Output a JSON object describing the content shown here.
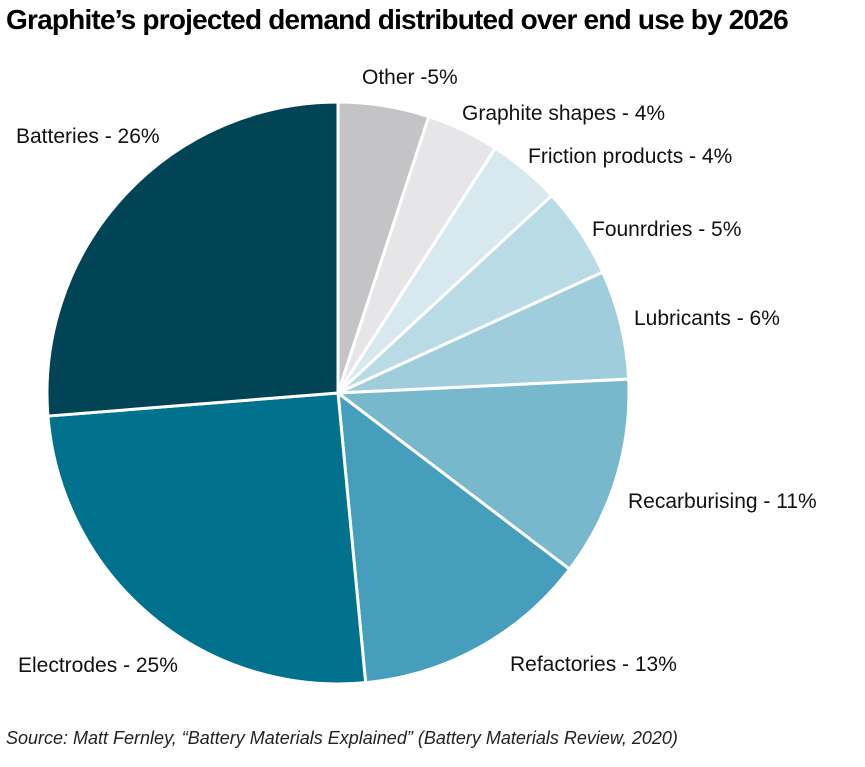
{
  "chart_data": {
    "type": "pie",
    "title": "Graphite’s projected demand distributed over end use by 2026",
    "slices": [
      {
        "label": "Other -5%",
        "value": 5,
        "color": "#c4c3c5"
      },
      {
        "label": "Graphite shapes - 4%",
        "value": 4,
        "color": "#e6e5e7"
      },
      {
        "label": "Friction products - 4%",
        "value": 4,
        "color": "#d7e9ef"
      },
      {
        "label": "Founrdries - 5%",
        "value": 5,
        "color": "#b9dbe5"
      },
      {
        "label": "Lubricants - 6%",
        "value": 6,
        "color": "#9fcddb"
      },
      {
        "label": "Recarburising - 11%",
        "value": 11,
        "color": "#78b8cc"
      },
      {
        "label": "Refactories - 13%",
        "value": 13,
        "color": "#459ebb"
      },
      {
        "label": "Electrodes - 25%",
        "value": 25,
        "color": "#00728e"
      },
      {
        "label": "Batteries - 26%",
        "value": 26,
        "color": "#014456"
      }
    ],
    "start_angle": "12 o'clock",
    "direction": "clockwise"
  },
  "source": "Source: Matt Fernley, “Battery Materials Explained” (Battery Materials Review, 2020)"
}
